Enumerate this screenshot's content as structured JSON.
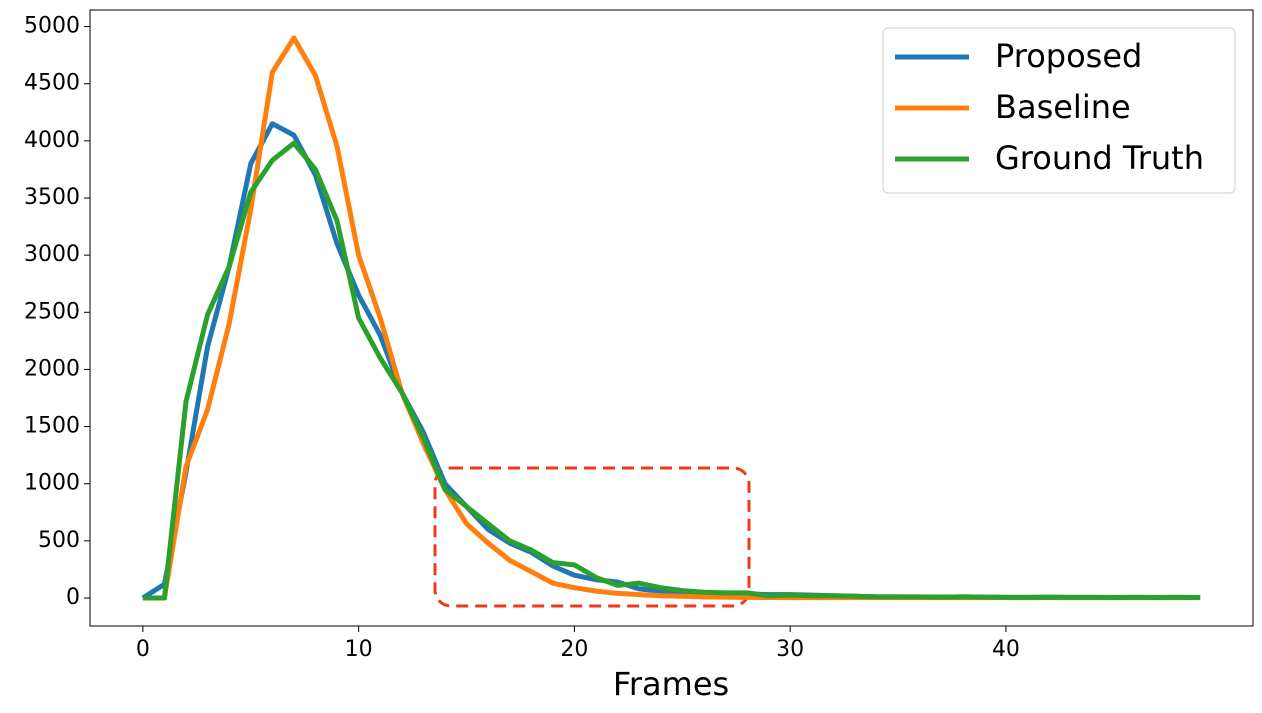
{
  "chart_data": {
    "type": "line",
    "xlabel": "Frames",
    "x": [
      0,
      1,
      2,
      3,
      4,
      5,
      6,
      7,
      8,
      9,
      10,
      11,
      12,
      13,
      14,
      15,
      16,
      17,
      18,
      19,
      20,
      21,
      22,
      23,
      24,
      25,
      26,
      27,
      28,
      29,
      30,
      31,
      32,
      33,
      34,
      35,
      36,
      37,
      38,
      39,
      40,
      41,
      42,
      43,
      44,
      45,
      46,
      47,
      48,
      49
    ],
    "series": [
      {
        "name": "Proposed",
        "color": "#1f77b4",
        "values": [
          0,
          120,
          1100,
          2200,
          2900,
          3800,
          4150,
          4050,
          3700,
          3100,
          2650,
          2300,
          1800,
          1450,
          1000,
          800,
          600,
          480,
          400,
          280,
          200,
          160,
          140,
          80,
          60,
          50,
          45,
          40,
          35,
          30,
          30,
          25,
          20,
          15,
          10,
          10,
          8,
          8,
          10,
          8,
          6,
          5,
          8,
          6,
          5,
          4,
          6,
          4,
          6,
          4
        ]
      },
      {
        "name": "Baseline",
        "color": "#ff7f0e",
        "values": [
          0,
          0,
          1150,
          1650,
          2400,
          3400,
          4600,
          4900,
          4570,
          3950,
          3000,
          2450,
          1800,
          1350,
          950,
          650,
          480,
          330,
          230,
          130,
          90,
          60,
          40,
          30,
          20,
          15,
          10,
          8,
          5,
          4,
          3,
          3,
          3,
          3,
          3,
          3,
          3,
          3,
          3,
          3,
          3,
          3,
          3,
          3,
          3,
          3,
          3,
          3,
          3,
          3
        ]
      },
      {
        "name": "Ground Truth",
        "color": "#2ca02c",
        "values": [
          0,
          0,
          1720,
          2480,
          2900,
          3550,
          3830,
          3980,
          3750,
          3300,
          2450,
          2100,
          1800,
          1400,
          950,
          800,
          650,
          500,
          420,
          310,
          290,
          180,
          110,
          130,
          90,
          65,
          50,
          45,
          45,
          20,
          25,
          20,
          20,
          15,
          10,
          10,
          10,
          8,
          10,
          8,
          6,
          5,
          6,
          6,
          5,
          4,
          5,
          4,
          6,
          4
        ]
      }
    ],
    "xlim": [
      -2.45,
      51.45
    ],
    "xticks": [
      0,
      10,
      20,
      30,
      40
    ],
    "ylim": [
      -245,
      5145
    ],
    "yticks": [
      0,
      500,
      1000,
      1500,
      2000,
      2500,
      3000,
      3500,
      4000,
      4500,
      5000
    ],
    "legend": "upper right"
  }
}
